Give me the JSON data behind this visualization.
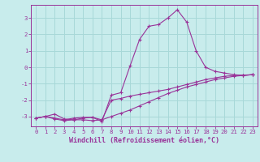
{
  "xlabel": "Windchill (Refroidissement éolien,°C)",
  "xlim": [
    -0.5,
    23.5
  ],
  "ylim": [
    -3.6,
    3.8
  ],
  "yticks": [
    -3,
    -2,
    -1,
    0,
    1,
    2,
    3
  ],
  "xticks": [
    0,
    1,
    2,
    3,
    4,
    5,
    6,
    7,
    8,
    9,
    10,
    11,
    12,
    13,
    14,
    15,
    16,
    17,
    18,
    19,
    20,
    21,
    22,
    23
  ],
  "bg_color": "#c8ecec",
  "grid_color": "#a8d8d8",
  "line_color": "#993399",
  "line1_x": [
    0,
    1,
    2,
    3,
    4,
    5,
    6,
    7,
    8,
    9,
    10,
    11,
    12,
    13,
    14,
    15,
    16,
    17,
    18,
    19,
    20,
    21,
    22,
    23
  ],
  "line1_y": [
    -3.1,
    -3.0,
    -3.15,
    -3.25,
    -3.2,
    -3.2,
    -3.25,
    -3.2,
    -3.0,
    -2.8,
    -2.6,
    -2.35,
    -2.1,
    -1.85,
    -1.6,
    -1.4,
    -1.2,
    -1.05,
    -0.9,
    -0.75,
    -0.65,
    -0.55,
    -0.5,
    -0.45
  ],
  "line2_x": [
    0,
    1,
    2,
    3,
    4,
    5,
    6,
    7,
    8,
    9,
    10,
    11,
    12,
    13,
    14,
    15,
    16,
    17,
    18,
    19,
    20,
    21,
    22,
    23
  ],
  "line2_y": [
    -3.1,
    -3.0,
    -3.1,
    -3.2,
    -3.1,
    -3.05,
    -3.05,
    -3.2,
    -2.0,
    -1.9,
    -1.75,
    -1.65,
    -1.55,
    -1.45,
    -1.35,
    -1.2,
    -1.05,
    -0.9,
    -0.75,
    -0.65,
    -0.55,
    -0.5,
    -0.48,
    -0.45
  ],
  "line3_x": [
    0,
    1,
    2,
    3,
    4,
    5,
    6,
    7,
    8,
    9,
    10,
    11,
    12,
    13,
    14,
    15,
    16,
    17,
    18,
    19,
    20,
    21,
    22,
    23
  ],
  "line3_y": [
    -3.1,
    -3.0,
    -2.85,
    -3.15,
    -3.2,
    -3.1,
    -3.05,
    -3.3,
    -1.7,
    -1.55,
    0.1,
    1.7,
    2.5,
    2.6,
    3.0,
    3.5,
    2.75,
    1.0,
    0.0,
    -0.25,
    -0.35,
    -0.45,
    -0.5,
    -0.45
  ]
}
